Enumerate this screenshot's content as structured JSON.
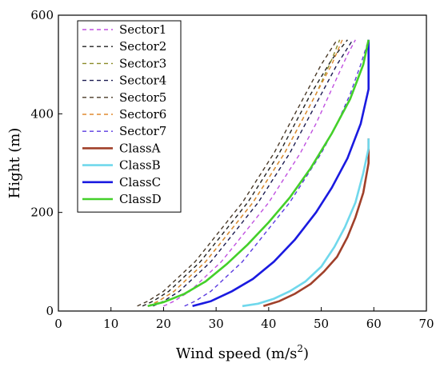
{
  "chart_data": {
    "type": "line",
    "title": "",
    "xlabel": "Wind speed (m/s",
    "xlabel_sup": "2",
    "xlabel_close": ")",
    "ylabel": "Hight (m)",
    "xlim": [
      0,
      70
    ],
    "ylim": [
      0,
      600
    ],
    "xticks": [
      0,
      10,
      20,
      30,
      40,
      50,
      60,
      70
    ],
    "yticks": [
      0,
      200,
      400,
      600
    ],
    "grid": false,
    "legend_position": "top-left",
    "series": [
      {
        "name": "Sector1",
        "style": "dashed",
        "color": "#c050e0",
        "points": [
          [
            20,
            10
          ],
          [
            22,
            20
          ],
          [
            25,
            40
          ],
          [
            28,
            70
          ],
          [
            31,
            100
          ],
          [
            34,
            140
          ],
          [
            37,
            180
          ],
          [
            40,
            220
          ],
          [
            43,
            270
          ],
          [
            46,
            320
          ],
          [
            49,
            380
          ],
          [
            52,
            450
          ],
          [
            55,
            520
          ],
          [
            56.5,
            550
          ]
        ]
      },
      {
        "name": "Sector2",
        "style": "dashed",
        "color": "#222222",
        "points": [
          [
            16,
            10
          ],
          [
            18,
            20
          ],
          [
            21,
            40
          ],
          [
            24,
            70
          ],
          [
            27,
            100
          ],
          [
            30,
            140
          ],
          [
            33,
            180
          ],
          [
            36,
            220
          ],
          [
            39,
            270
          ],
          [
            42,
            320
          ],
          [
            45,
            380
          ],
          [
            48,
            440
          ],
          [
            52,
            510
          ],
          [
            55,
            550
          ]
        ]
      },
      {
        "name": "Sector3",
        "style": "dashed",
        "color": "#8c8c28",
        "points": [
          [
            17,
            10
          ],
          [
            19,
            20
          ],
          [
            22,
            40
          ],
          [
            25,
            70
          ],
          [
            28,
            100
          ],
          [
            31,
            140
          ],
          [
            34,
            180
          ],
          [
            37,
            220
          ],
          [
            40,
            270
          ],
          [
            43,
            320
          ],
          [
            46,
            380
          ],
          [
            49,
            440
          ],
          [
            52,
            510
          ],
          [
            53.5,
            550
          ]
        ]
      },
      {
        "name": "Sector4",
        "style": "dashed",
        "color": "#1a1a50",
        "points": [
          [
            18,
            10
          ],
          [
            20,
            20
          ],
          [
            23,
            40
          ],
          [
            26,
            70
          ],
          [
            29,
            100
          ],
          [
            32,
            140
          ],
          [
            35,
            180
          ],
          [
            38,
            220
          ],
          [
            41,
            270
          ],
          [
            44,
            320
          ],
          [
            47,
            380
          ],
          [
            50,
            440
          ],
          [
            53,
            500
          ],
          [
            56,
            550
          ]
        ]
      },
      {
        "name": "Sector5",
        "style": "dashed",
        "color": "#4a3a28",
        "points": [
          [
            15,
            10
          ],
          [
            17,
            20
          ],
          [
            20,
            40
          ],
          [
            23,
            70
          ],
          [
            26,
            100
          ],
          [
            29,
            140
          ],
          [
            32,
            180
          ],
          [
            35,
            220
          ],
          [
            38,
            270
          ],
          [
            41,
            320
          ],
          [
            44,
            380
          ],
          [
            47,
            440
          ],
          [
            50,
            500
          ],
          [
            53,
            550
          ]
        ]
      },
      {
        "name": "Sector6",
        "style": "dashed",
        "color": "#e08a30",
        "points": [
          [
            17,
            10
          ],
          [
            19,
            20
          ],
          [
            22,
            40
          ],
          [
            25,
            70
          ],
          [
            28,
            100
          ],
          [
            31,
            140
          ],
          [
            34,
            180
          ],
          [
            37,
            220
          ],
          [
            40,
            270
          ],
          [
            43,
            320
          ],
          [
            46,
            380
          ],
          [
            49,
            440
          ],
          [
            52,
            500
          ],
          [
            54,
            550
          ]
        ]
      },
      {
        "name": "Sector7",
        "style": "dashed",
        "color": "#5a3ae0",
        "points": [
          [
            24,
            10
          ],
          [
            26,
            20
          ],
          [
            29,
            40
          ],
          [
            32,
            70
          ],
          [
            35,
            100
          ],
          [
            38,
            140
          ],
          [
            41,
            180
          ],
          [
            44,
            220
          ],
          [
            47,
            270
          ],
          [
            50,
            320
          ],
          [
            53,
            380
          ],
          [
            55.5,
            440
          ],
          [
            57.5,
            500
          ],
          [
            59,
            550
          ]
        ]
      },
      {
        "name": "ClassA",
        "style": "solid",
        "color": "#a0402a",
        "points": [
          [
            39,
            10
          ],
          [
            42,
            20
          ],
          [
            45,
            35
          ],
          [
            48,
            55
          ],
          [
            50.5,
            80
          ],
          [
            53,
            110
          ],
          [
            55,
            150
          ],
          [
            56.5,
            190
          ],
          [
            58,
            240
          ],
          [
            59,
            300
          ],
          [
            59,
            350
          ]
        ]
      },
      {
        "name": "ClassB",
        "style": "solid",
        "color": "#70d8ec",
        "points": [
          [
            35,
            10
          ],
          [
            38,
            15
          ],
          [
            41,
            25
          ],
          [
            44,
            40
          ],
          [
            47,
            60
          ],
          [
            50,
            90
          ],
          [
            52.5,
            130
          ],
          [
            54.5,
            170
          ],
          [
            56.5,
            220
          ],
          [
            58,
            280
          ],
          [
            59,
            330
          ],
          [
            59,
            350
          ]
        ]
      },
      {
        "name": "ClassC",
        "style": "solid",
        "color": "#1a1ae0",
        "points": [
          [
            25.5,
            10
          ],
          [
            29,
            20
          ],
          [
            33,
            40
          ],
          [
            37,
            65
          ],
          [
            41,
            100
          ],
          [
            45,
            145
          ],
          [
            49,
            200
          ],
          [
            52,
            250
          ],
          [
            55,
            310
          ],
          [
            57.5,
            380
          ],
          [
            59,
            450
          ],
          [
            59,
            550
          ]
        ]
      },
      {
        "name": "ClassD",
        "style": "solid",
        "color": "#44d02a",
        "points": [
          [
            17,
            10
          ],
          [
            20,
            18
          ],
          [
            24,
            35
          ],
          [
            28,
            60
          ],
          [
            32,
            95
          ],
          [
            36,
            135
          ],
          [
            40,
            180
          ],
          [
            44,
            230
          ],
          [
            48,
            290
          ],
          [
            52,
            360
          ],
          [
            55.5,
            430
          ],
          [
            58,
            500
          ],
          [
            59,
            550
          ]
        ]
      }
    ]
  }
}
